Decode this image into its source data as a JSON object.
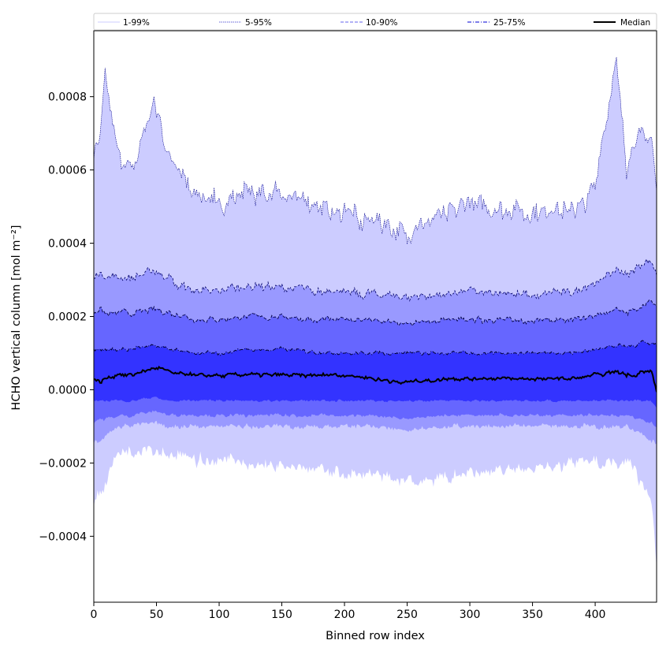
{
  "chart_data": {
    "type": "area",
    "xlabel": "Binned row index",
    "ylabel": "HCHO vertical column [mol m⁻²]",
    "xlim": [
      0,
      449
    ],
    "ylim": [
      -0.00058,
      0.00098
    ],
    "x_ticks": [
      0,
      50,
      100,
      150,
      200,
      250,
      300,
      350,
      400
    ],
    "x_tick_labels": [
      "0",
      "50",
      "100",
      "150",
      "200",
      "250",
      "300",
      "350",
      "400"
    ],
    "y_ticks": [
      -0.0004,
      -0.0002,
      0.0,
      0.0002,
      0.0004,
      0.0006,
      0.0008
    ],
    "y_tick_labels": [
      "−0.0004",
      "−0.0002",
      "0.0000",
      "0.0002",
      "0.0004",
      "0.0006",
      "0.0008"
    ],
    "grid": false,
    "legend_position": "top (single row above plot)",
    "legend": [
      {
        "label": "1-99%",
        "color": "#ccccff",
        "style": "thin solid"
      },
      {
        "label": "5-95%",
        "color": "#0000cc",
        "style": "thin dotted"
      },
      {
        "label": "10-90%",
        "color": "#6666ee",
        "style": "dashed"
      },
      {
        "label": "25-75%",
        "color": "#3333dd",
        "style": "dash-dot"
      },
      {
        "label": "Median",
        "color": "#000000",
        "style": "thick solid"
      }
    ],
    "band_colors": {
      "p1_99": "#ccccff",
      "p5_95": "#9999ff",
      "p10_90": "#6666ff",
      "p25_75": "#3333ff"
    },
    "x_control": [
      0,
      5,
      9,
      20,
      30,
      48,
      60,
      80,
      100,
      120,
      150,
      180,
      200,
      220,
      250,
      280,
      300,
      330,
      360,
      380,
      400,
      417,
      425,
      432,
      438,
      445,
      449
    ],
    "series": [
      {
        "name": "1-99%",
        "role": "upper",
        "values": [
          0.00065,
          0.00068,
          0.00085,
          0.00063,
          0.00059,
          0.00079,
          0.00064,
          0.00054,
          0.0005,
          0.00054,
          0.00053,
          0.0005,
          0.00048,
          0.00047,
          0.00043,
          0.00047,
          0.00051,
          0.00049,
          0.00048,
          0.00049,
          0.00055,
          0.00091,
          0.00062,
          0.00068,
          0.0007,
          0.00068,
          0.00055
        ]
      },
      {
        "name": "5-95%",
        "role": "upper",
        "values": [
          0.0003,
          0.00032,
          0.00031,
          0.00031,
          0.0003,
          0.00033,
          0.0003,
          0.00027,
          0.00027,
          0.00028,
          0.00028,
          0.00027,
          0.00027,
          0.00026,
          0.00025,
          0.00026,
          0.00027,
          0.00026,
          0.00026,
          0.00027,
          0.00029,
          0.00033,
          0.00031,
          0.00033,
          0.00034,
          0.00035,
          0.00032
        ]
      },
      {
        "name": "10-90%",
        "role": "upper",
        "values": [
          0.00021,
          0.00022,
          0.00021,
          0.00021,
          0.00021,
          0.00022,
          0.00021,
          0.00019,
          0.00019,
          0.0002,
          0.0002,
          0.00019,
          0.00019,
          0.00019,
          0.00018,
          0.00019,
          0.00019,
          0.00019,
          0.00019,
          0.00019,
          0.0002,
          0.00022,
          0.00021,
          0.00022,
          0.00023,
          0.00024,
          0.00022
        ]
      },
      {
        "name": "25-75%",
        "role": "upper",
        "values": [
          0.00011,
          0.00011,
          0.00011,
          0.00011,
          0.00011,
          0.00012,
          0.00011,
          0.0001,
          0.0001,
          0.00011,
          0.00011,
          0.0001,
          0.0001,
          0.0001,
          0.0001,
          0.0001,
          0.0001,
          0.0001,
          0.0001,
          0.0001,
          0.00011,
          0.00012,
          0.00012,
          0.00012,
          0.00013,
          0.00013,
          0.00012
        ]
      },
      {
        "name": "Median",
        "role": "median",
        "values": [
          3e-05,
          2e-05,
          3e-05,
          4e-05,
          4e-05,
          6e-05,
          5e-05,
          4e-05,
          4e-05,
          4e-05,
          4e-05,
          4e-05,
          4e-05,
          3e-05,
          2e-05,
          3e-05,
          3e-05,
          3e-05,
          3e-05,
          3e-05,
          4e-05,
          5e-05,
          4e-05,
          4e-05,
          5e-05,
          5e-05,
          -1e-05
        ]
      },
      {
        "name": "25-75%",
        "role": "lower",
        "values": [
          -3e-05,
          -3e-05,
          -3e-05,
          -3e-05,
          -3e-05,
          -2e-05,
          -3e-05,
          -3e-05,
          -3e-05,
          -3e-05,
          -3e-05,
          -3e-05,
          -3e-05,
          -3e-05,
          -3e-05,
          -3e-05,
          -3e-05,
          -3e-05,
          -3e-05,
          -3e-05,
          -3e-05,
          -3e-05,
          -3e-05,
          -3e-05,
          -3e-05,
          -3e-05,
          -5e-05
        ]
      },
      {
        "name": "10-90%",
        "role": "lower",
        "values": [
          -9e-05,
          -8e-05,
          -8e-05,
          -7e-05,
          -7e-05,
          -6e-05,
          -7e-05,
          -7e-05,
          -7e-05,
          -7e-05,
          -7e-05,
          -7e-05,
          -7e-05,
          -7e-05,
          -8e-05,
          -7e-05,
          -7e-05,
          -7e-05,
          -7e-05,
          -7e-05,
          -7e-05,
          -7e-05,
          -7e-05,
          -8e-05,
          -8e-05,
          -9e-05,
          -0.0001
        ]
      },
      {
        "name": "5-95%",
        "role": "lower",
        "values": [
          -0.00015,
          -0.00014,
          -0.00013,
          -0.0001,
          -0.0001,
          -9e-05,
          -0.0001,
          -0.0001,
          -0.0001,
          -0.0001,
          -0.0001,
          -0.0001,
          -0.0001,
          -0.0001,
          -0.00011,
          -0.0001,
          -0.0001,
          -0.0001,
          -0.0001,
          -0.0001,
          -0.0001,
          -0.0001,
          -0.0001,
          -0.00011,
          -0.00012,
          -0.00014,
          -0.00015
        ]
      },
      {
        "name": "1-99%",
        "role": "lower",
        "values": [
          -0.00031,
          -0.00028,
          -0.00026,
          -0.00016,
          -0.00017,
          -0.00016,
          -0.00018,
          -0.00019,
          -0.00019,
          -0.0002,
          -0.00021,
          -0.00022,
          -0.00023,
          -0.00023,
          -0.00025,
          -0.00024,
          -0.00023,
          -0.00022,
          -0.00021,
          -0.0002,
          -0.00019,
          -0.00021,
          -0.0002,
          -0.00022,
          -0.00027,
          -0.00031,
          -0.00048
        ]
      }
    ]
  }
}
